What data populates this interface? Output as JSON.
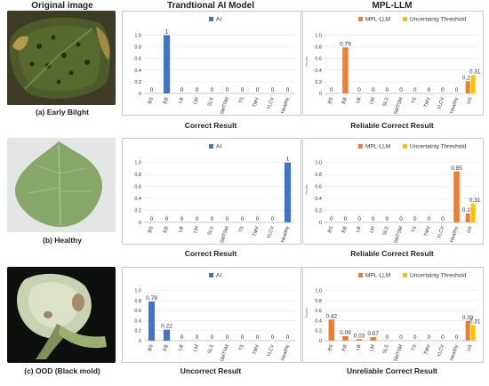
{
  "column_titles": {
    "image": "Original image",
    "ai": "Trandtional AI Model",
    "llm": "MPL-LLM"
  },
  "rows": [
    {
      "image_caption": "(a) Early Bilght",
      "ai_caption": "Correct Result",
      "llm_caption": "Reliable Correct Result"
    },
    {
      "image_caption": "(b) Healthy",
      "ai_caption": "Correct Result",
      "llm_caption": "Reliable Correct Result"
    },
    {
      "image_caption": "(c) OOD (Black mold)",
      "ai_caption": "Uncorrect Result",
      "llm_caption": "Unreliable Correct Result"
    }
  ],
  "colors": {
    "ai": "#4472c4",
    "mpl": "#ed7d31",
    "threshold": "#ffc000"
  },
  "chart_data": [
    {
      "id": "a-ai",
      "type": "bar",
      "categories": [
        "BS",
        "EB",
        "LB",
        "LM",
        "SLS",
        "SMTSM",
        "TS",
        "TMV",
        "YLCV",
        "Healthy"
      ],
      "ylim": [
        0,
        1.1
      ],
      "yticks": [
        "0",
        "0.2",
        "0.4",
        "0.6",
        "0.8",
        "1.0"
      ],
      "series": [
        {
          "name": "AI",
          "values": [
            0,
            1,
            0,
            0,
            0,
            0,
            0,
            0,
            0,
            0
          ],
          "labels": [
            "0",
            "1",
            "0",
            "0",
            "0",
            "0",
            "0",
            "0",
            "0",
            "0"
          ]
        }
      ]
    },
    {
      "id": "a-llm",
      "type": "bar",
      "categories": [
        "BS",
        "EB",
        "LB",
        "LM",
        "SLS",
        "SMTSM",
        "TS",
        "TMV",
        "YLCV",
        "Healthy",
        "US"
      ],
      "ylim": [
        0,
        1.1
      ],
      "yticks": [
        "0",
        "0.2",
        "0.4",
        "0.6",
        "0.8",
        "1.0"
      ],
      "ylabel": "Scores",
      "series": [
        {
          "name": "MPL-LLM",
          "values": [
            0,
            0.79,
            0,
            0,
            0,
            0,
            0,
            0,
            0,
            0,
            0.21
          ],
          "labels": [
            "0",
            "0.79",
            "0",
            "0",
            "0",
            "0",
            "0",
            "0",
            "0",
            "0",
            "0.21"
          ]
        }
      ],
      "threshold": {
        "name": "Uncertainty Threshold",
        "category": "US",
        "value": 0.31,
        "label": "0.31"
      }
    },
    {
      "id": "b-ai",
      "type": "bar",
      "categories": [
        "BS",
        "EB",
        "LB",
        "LM",
        "SLS",
        "SMTSM",
        "TS",
        "TMV",
        "YLCV",
        "Healthy"
      ],
      "ylim": [
        0,
        1.1
      ],
      "yticks": [
        "0",
        "0.2",
        "0.4",
        "0.6",
        "0.8",
        "1.0"
      ],
      "series": [
        {
          "name": "AI",
          "values": [
            0,
            0,
            0,
            0,
            0,
            0,
            0,
            0,
            0,
            1
          ],
          "labels": [
            "0",
            "0",
            "0",
            "0",
            "0",
            "0",
            "0",
            "0",
            "0",
            "1"
          ]
        }
      ]
    },
    {
      "id": "b-llm",
      "type": "bar",
      "categories": [
        "BS",
        "EB",
        "LB",
        "LM",
        "SLS",
        "SMTSM",
        "TS",
        "TMV",
        "YLCV",
        "Healthy",
        "US"
      ],
      "ylim": [
        0,
        1.1
      ],
      "yticks": [
        "0",
        "0.2",
        "0.4",
        "0.6",
        "0.8",
        "1.0"
      ],
      "ylabel": "Scores",
      "series": [
        {
          "name": "MPL-LLM",
          "values": [
            0,
            0,
            0,
            0,
            0,
            0,
            0,
            0,
            0,
            0.85,
            0.15
          ],
          "labels": [
            "0",
            "0",
            "0",
            "0",
            "0",
            "0",
            "0",
            "0",
            "0",
            "0.85",
            "0.15"
          ]
        }
      ],
      "threshold": {
        "name": "Uncertainty Threshold",
        "category": "US",
        "value": 0.31,
        "label": "0.31"
      }
    },
    {
      "id": "c-ai",
      "type": "bar",
      "categories": [
        "BS",
        "EB",
        "LB",
        "LM",
        "SLS",
        "SMTSM",
        "TS",
        "TMV",
        "YLCV",
        "Healthy"
      ],
      "ylim": [
        0,
        1.1
      ],
      "yticks": [
        "0",
        "0.2",
        "0.4",
        "0.6",
        "0.8",
        "1.0"
      ],
      "series": [
        {
          "name": "AI",
          "values": [
            0.78,
            0.22,
            0,
            0,
            0,
            0,
            0,
            0,
            0,
            0
          ],
          "labels": [
            "0.78",
            "0.22",
            "0",
            "0",
            "0",
            "0",
            "0",
            "0",
            "0",
            "0"
          ]
        }
      ]
    },
    {
      "id": "c-llm",
      "type": "bar",
      "categories": [
        "BS",
        "EB",
        "LB",
        "LM",
        "SLS",
        "SMTSM",
        "TS",
        "TMV",
        "YLCV",
        "Healthy",
        "US"
      ],
      "ylim": [
        0,
        1.1
      ],
      "yticks": [
        "0",
        "0.2",
        "0.4",
        "0.6",
        "0.8",
        "1.0"
      ],
      "ylabel": "Scores",
      "series": [
        {
          "name": "MPL-LLM",
          "values": [
            0.42,
            0.09,
            0.03,
            0.07,
            0,
            0,
            0,
            0,
            0,
            0,
            0.39
          ],
          "labels": [
            "0.42",
            "0.09",
            "0.03",
            "0.07",
            "0",
            "0",
            "0",
            "0",
            "0",
            "0",
            "0.39"
          ]
        }
      ],
      "threshold": {
        "name": "Uncertainty Threshold",
        "category": "US",
        "value": 0.31,
        "label": "0.31"
      }
    }
  ]
}
